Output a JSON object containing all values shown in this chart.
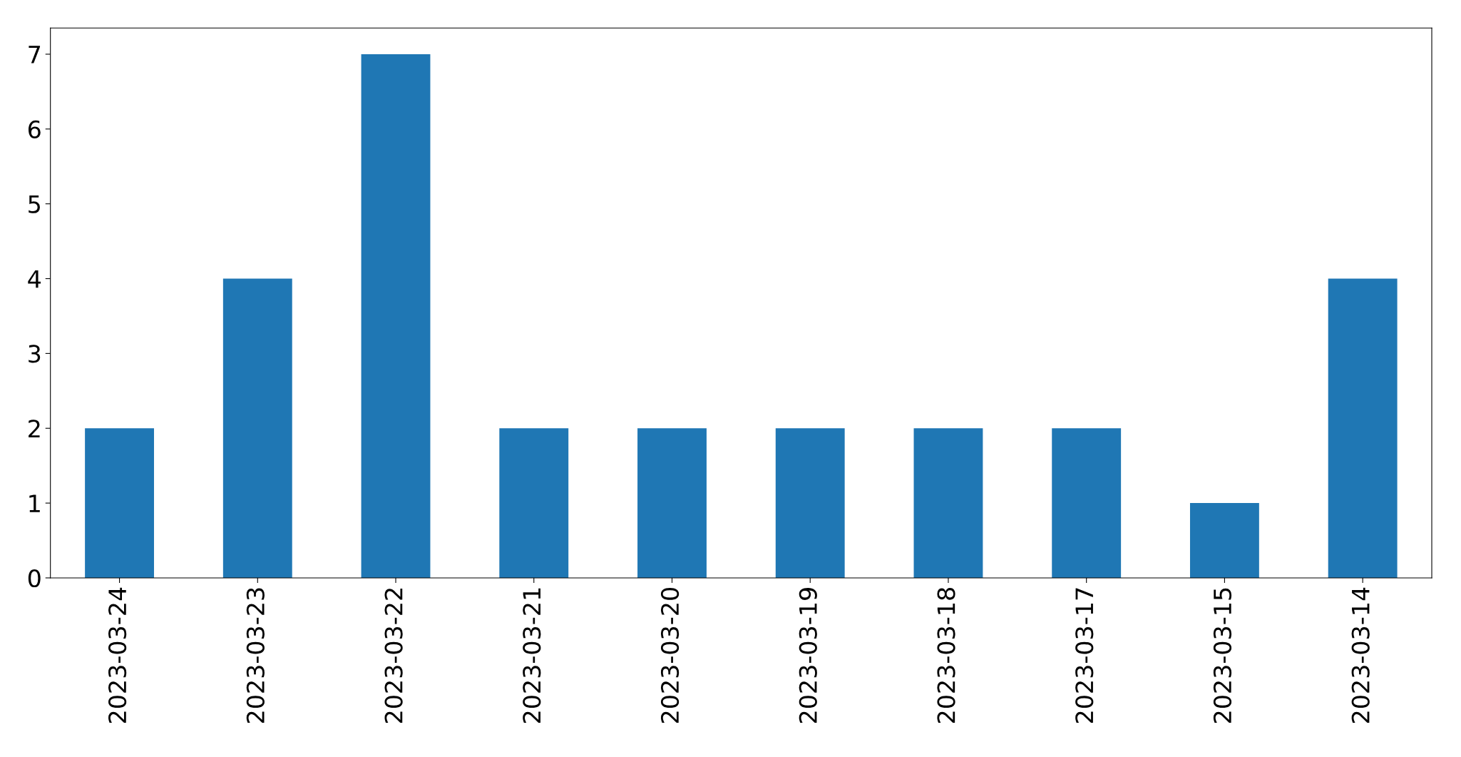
{
  "chart_data": {
    "type": "bar",
    "categories": [
      "2023-03-24",
      "2023-03-23",
      "2023-03-22",
      "2023-03-21",
      "2023-03-20",
      "2023-03-19",
      "2023-03-18",
      "2023-03-17",
      "2023-03-15",
      "2023-03-14"
    ],
    "values": [
      2,
      4,
      7,
      2,
      2,
      2,
      2,
      2,
      1,
      4
    ],
    "color": "#1f77b4",
    "ylim": [
      0,
      7.35
    ],
    "yticks": [
      0,
      1,
      2,
      3,
      4,
      5,
      6,
      7
    ]
  }
}
